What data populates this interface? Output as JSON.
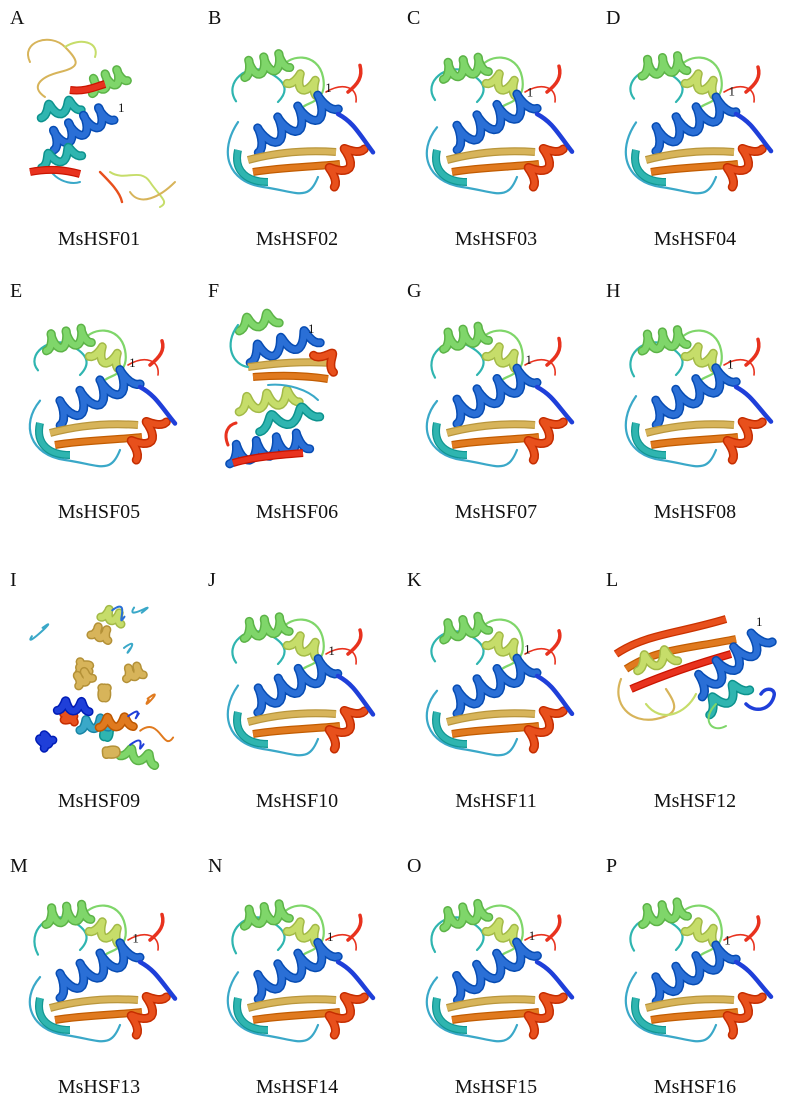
{
  "panels": [
    {
      "letter": "A",
      "name": "MsHSF01",
      "residue_label": "1",
      "variant": "extended"
    },
    {
      "letter": "B",
      "name": "MsHSF02",
      "residue_label": "1",
      "variant": "compact"
    },
    {
      "letter": "C",
      "name": "MsHSF03",
      "residue_label": "1",
      "variant": "compact"
    },
    {
      "letter": "D",
      "name": "MsHSF04",
      "residue_label": "1",
      "variant": "compact"
    },
    {
      "letter": "E",
      "name": "MsHSF05",
      "residue_label": "1",
      "variant": "compact"
    },
    {
      "letter": "F",
      "name": "MsHSF06",
      "residue_label": "1",
      "variant": "double"
    },
    {
      "letter": "G",
      "name": "MsHSF07",
      "residue_label": "1",
      "variant": "compact"
    },
    {
      "letter": "H",
      "name": "MsHSF08",
      "residue_label": "1",
      "variant": "compact"
    },
    {
      "letter": "I",
      "name": "MsHSF09",
      "residue_label": "",
      "variant": "dense"
    },
    {
      "letter": "J",
      "name": "MsHSF10",
      "residue_label": "1",
      "variant": "compact"
    },
    {
      "letter": "K",
      "name": "MsHSF11",
      "residue_label": "1",
      "variant": "compact"
    },
    {
      "letter": "L",
      "name": "MsHSF12",
      "residue_label": "1",
      "variant": "tangle"
    },
    {
      "letter": "M",
      "name": "MsHSF13",
      "residue_label": "1",
      "variant": "compact"
    },
    {
      "letter": "N",
      "name": "MsHSF14",
      "residue_label": "1",
      "variant": "compact"
    },
    {
      "letter": "O",
      "name": "MsHSF15",
      "residue_label": "1",
      "variant": "compact"
    },
    {
      "letter": "P",
      "name": "MsHSF16",
      "residue_label": "1",
      "variant": "compact"
    }
  ],
  "colors": {
    "n_terminus": "#1f3fd9",
    "helix_blue": "#2a6fd6",
    "teal": "#2fb5b0",
    "cyan": "#3aa8c8",
    "green": "#7fd66a",
    "yellow_green": "#c6dd6a",
    "tan": "#d7b45a",
    "orange": "#e07a1f",
    "red_orange": "#e8501c",
    "c_terminus": "#e8321e"
  }
}
